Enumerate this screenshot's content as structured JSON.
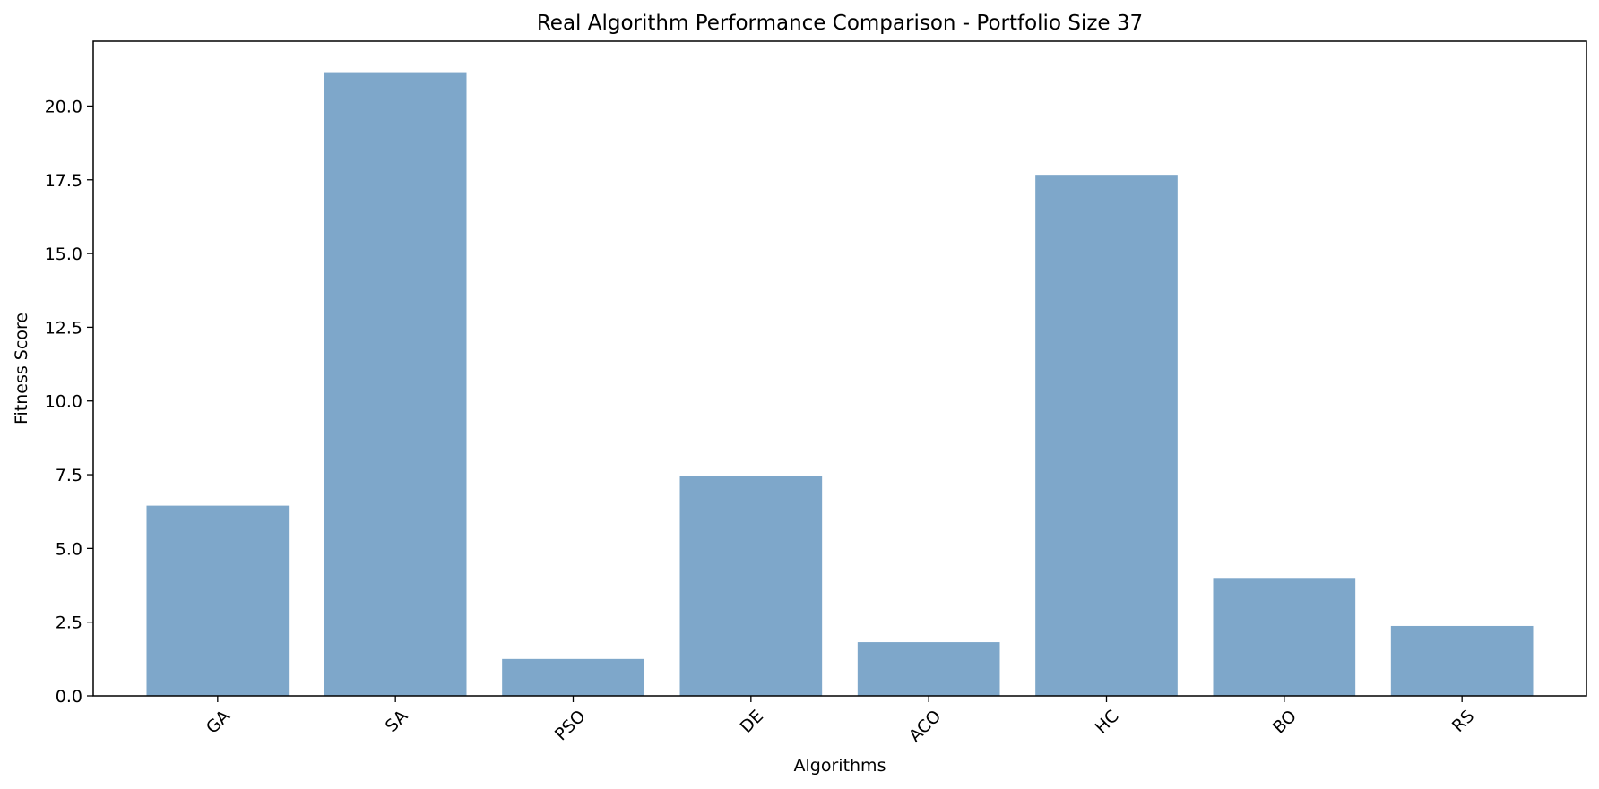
{
  "chart_data": {
    "type": "bar",
    "title": "Real Algorithm Performance Comparison - Portfolio Size 37",
    "xlabel": "Algorithms",
    "ylabel": "Fitness Score",
    "categories": [
      "GA",
      "SA",
      "PSO",
      "DE",
      "ACO",
      "HC",
      "BO",
      "RS"
    ],
    "values": [
      6.45,
      21.15,
      1.25,
      7.45,
      1.82,
      17.67,
      4.0,
      2.37
    ],
    "ylim": [
      0,
      22.2
    ],
    "yticks": [
      0.0,
      2.5,
      5.0,
      7.5,
      10.0,
      12.5,
      15.0,
      17.5,
      20.0
    ],
    "ytick_labels": [
      "0.0",
      "2.5",
      "5.0",
      "7.5",
      "10.0",
      "12.5",
      "15.0",
      "17.5",
      "20.0"
    ],
    "x_tick_rotation": 45,
    "grid": false,
    "bar_color": "#7ea7ca"
  }
}
